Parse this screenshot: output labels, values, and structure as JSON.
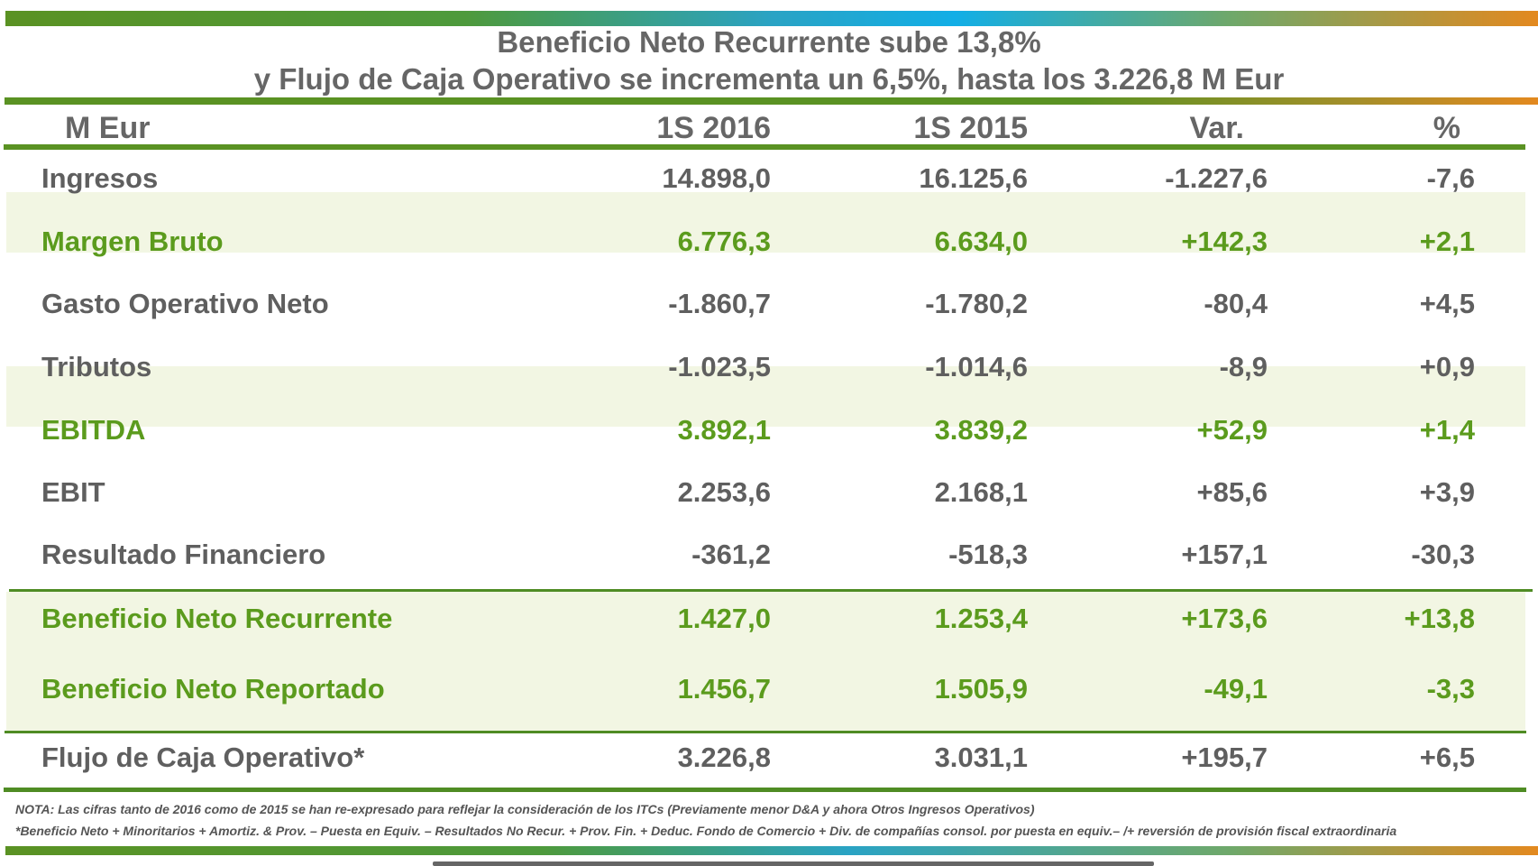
{
  "title": {
    "line1": "Beneficio Neto Recurrente sube 13,8%",
    "line2": "y Flujo de Caja Operativo se incrementa un 6,5%, hasta los 3.226,8 M Eur"
  },
  "table": {
    "headers": [
      "M Eur",
      "1S 2016",
      "1S 2015",
      "Var.",
      "%"
    ],
    "rows": [
      {
        "label": "Ingresos",
        "v2016": "14.898,0",
        "v2015": "16.125,6",
        "var": "-1.227,6",
        "pct": "-7,6"
      },
      {
        "label": "Margen Bruto",
        "v2016": "6.776,3",
        "v2015": "6.634,0",
        "var": "+142,3",
        "pct": "+2,1"
      },
      {
        "label": "Gasto Operativo Neto",
        "v2016": "-1.860,7",
        "v2015": "-1.780,2",
        "var": "-80,4",
        "pct": "+4,5"
      },
      {
        "label": "Tributos",
        "v2016": "-1.023,5",
        "v2015": "-1.014,6",
        "var": "-8,9",
        "pct": "+0,9"
      },
      {
        "label": "EBITDA",
        "v2016": "3.892,1",
        "v2015": "3.839,2",
        "var": "+52,9",
        "pct": "+1,4"
      },
      {
        "label": "EBIT",
        "v2016": "2.253,6",
        "v2015": "2.168,1",
        "var": "+85,6",
        "pct": "+3,9"
      },
      {
        "label": "Resultado Financiero",
        "v2016": "-361,2",
        "v2015": "-518,3",
        "var": "+157,1",
        "pct": "-30,3"
      },
      {
        "label": "Beneficio Neto Recurrente",
        "v2016": "1.427,0",
        "v2015": "1.253,4",
        "var": "+173,6",
        "pct": "+13,8"
      },
      {
        "label": "Beneficio Neto Reportado",
        "v2016": "1.456,7",
        "v2015": "1.505,9",
        "var": "-49,1",
        "pct": "-3,3"
      },
      {
        "label": "Flujo de Caja Operativo*",
        "v2016": "3.226,8",
        "v2015": "3.031,1",
        "var": "+195,7",
        "pct": "+6,5"
      }
    ]
  },
  "notes": {
    "nota": "NOTA: Las cifras tanto de 2016 como de 2015 se han re-expresado para reflejar la consideración de los ITCs (Previamente menor D&A y ahora Otros Ingresos Operativos)",
    "footnote": "*Beneficio Neto + Minoritarios + Amortiz. & Prov. – Puesta en Equiv. – Resultados No Recur. + Prov. Fin. + Deduc. Fondo de Comercio + Div. de compañías consol. por puesta en equiv.– /+ reversión de provisión fiscal extraordinaria"
  },
  "colors": {
    "accent_green": "#5b9b1d",
    "text_gray": "#5f5f5f",
    "band": "#f2f6e3"
  }
}
